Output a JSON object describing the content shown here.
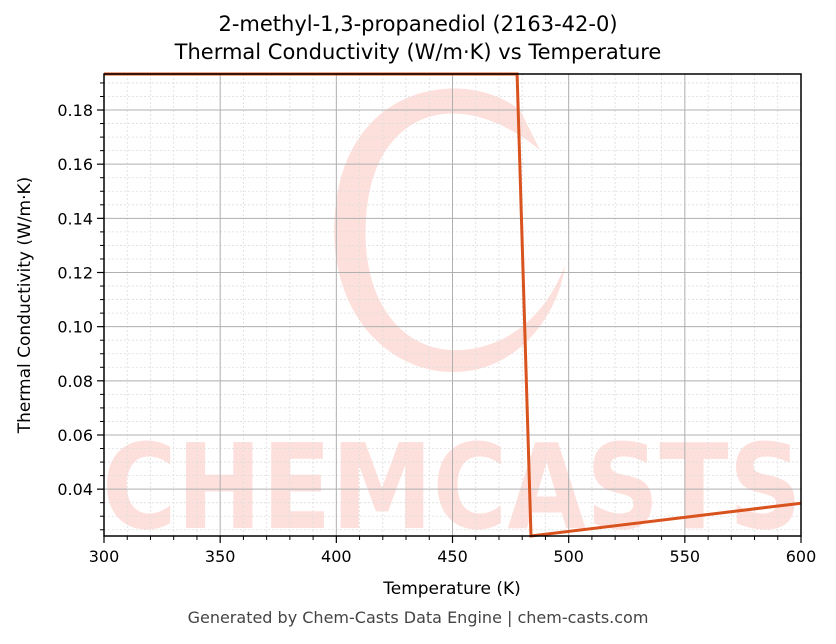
{
  "chart_data": {
    "type": "line",
    "title": "2-methyl-1,3-propanediol (2163-42-0)",
    "subtitle": "Thermal Conductivity (W/m·K) vs Temperature",
    "xlabel": "Temperature (K)",
    "ylabel": "Thermal Conductivity (W/m·K)",
    "xlim": [
      300,
      600
    ],
    "ylim": [
      0.0227,
      0.1933
    ],
    "xticks": [
      300,
      350,
      400,
      450,
      500,
      550,
      600
    ],
    "xtick_labels": [
      "300",
      "350",
      "400",
      "450",
      "500",
      "550",
      "600"
    ],
    "yticks": [
      0.04,
      0.06,
      0.08,
      0.1,
      0.12,
      0.14,
      0.16,
      0.18
    ],
    "ytick_labels": [
      "0.04",
      "0.06",
      "0.08",
      "0.10",
      "0.12",
      "0.14",
      "0.16",
      "0.18"
    ],
    "x_minor_step": 10,
    "y_minor_step": 0.005,
    "grid": true,
    "legend": null,
    "series": [
      {
        "name": "Thermal Conductivity",
        "color": "#d9531e",
        "x": [
          300,
          477.8,
          483.8,
          600
        ],
        "y": [
          0.1933,
          0.1933,
          0.0227,
          0.0348
        ]
      }
    ]
  },
  "watermark": {
    "text": "CHEMCASTS",
    "color": "#fde0dc"
  },
  "footer": {
    "text": "Generated by Chem-Casts Data Engine | chem-casts.com"
  }
}
